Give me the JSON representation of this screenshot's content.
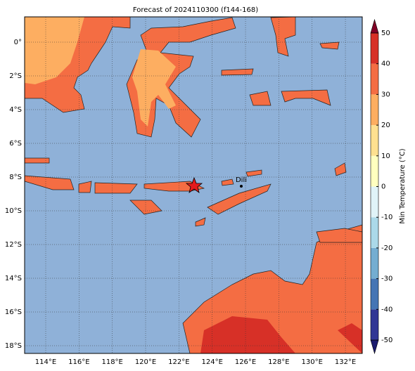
{
  "map": {
    "title": "Forecast of 2024110300 (f144-168)",
    "lon_ticks": [
      {
        "value": 114,
        "label": "114°E"
      },
      {
        "value": 116,
        "label": "116°E"
      },
      {
        "value": 118,
        "label": "118°E"
      },
      {
        "value": 120,
        "label": "120°E"
      },
      {
        "value": 122,
        "label": "122°E"
      },
      {
        "value": 124,
        "label": "124°E"
      },
      {
        "value": 126,
        "label": "126°E"
      },
      {
        "value": 128,
        "label": "128°E"
      },
      {
        "value": 130,
        "label": "130°E"
      },
      {
        "value": 132,
        "label": "132°E"
      }
    ],
    "lat_ticks": [
      {
        "value": 0,
        "label": "0°"
      },
      {
        "value": -2,
        "label": "2°S"
      },
      {
        "value": -4,
        "label": "4°S"
      },
      {
        "value": -6,
        "label": "6°S"
      },
      {
        "value": -8,
        "label": "8°S"
      },
      {
        "value": -10,
        "label": "10°S"
      },
      {
        "value": -12,
        "label": "12°S"
      },
      {
        "value": -14,
        "label": "14°S"
      },
      {
        "value": -16,
        "label": "16°S"
      },
      {
        "value": -18,
        "label": "18°S"
      }
    ],
    "places": [
      {
        "label": "Dili"
      }
    ],
    "colorbar": {
      "label": "Min Temperature (°C)",
      "ticks": [
        -50,
        -40,
        -30,
        -20,
        -10,
        0,
        10,
        20,
        30,
        40,
        50
      ],
      "colors": [
        "#313695",
        "#4575b4",
        "#74add1",
        "#abd9e9",
        "#e0f3f8",
        "#ffffbf",
        "#fee090",
        "#fdae61",
        "#f46d43",
        "#d73027"
      ],
      "under_color": "#1a1a6e",
      "over_color": "#800026"
    }
  }
}
